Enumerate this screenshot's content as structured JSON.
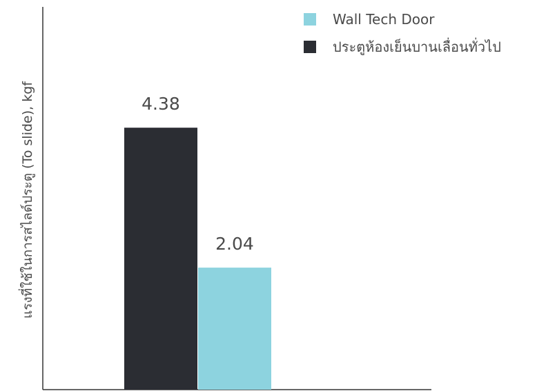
{
  "chart_data": {
    "type": "bar",
    "title": "",
    "xlabel": "",
    "ylabel": "แรงที่ใช้ในการสไลด์ประตู (To slide), kgf",
    "ylim": [
      0,
      6.4
    ],
    "categories": [
      ""
    ],
    "series": [
      {
        "name": "ประตูห้องเย็นบานเลื่อนทั่วไป",
        "color": "#2b2d33",
        "values": [
          4.38
        ],
        "label": "4.38"
      },
      {
        "name": "Wall Tech Door",
        "color": "#8dd3df",
        "values": [
          2.04
        ],
        "label": "2.04"
      }
    ],
    "legend_order": [
      1,
      0
    ],
    "legend_position": "top-right",
    "grid": false
  },
  "legend": {
    "items": [
      {
        "label": "Wall Tech Door",
        "color": "#8dd3df"
      },
      {
        "label": "ประตูห้องเย็นบานเลื่อนทั่วไป",
        "color": "#2b2d33"
      }
    ]
  }
}
